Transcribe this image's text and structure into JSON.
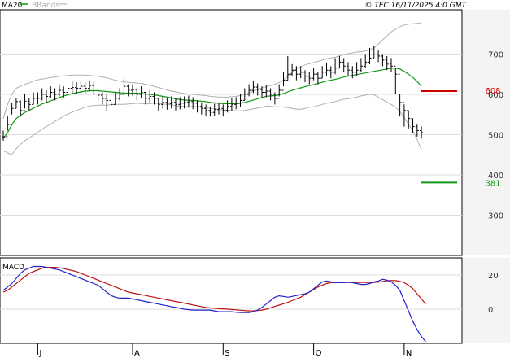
{
  "header": {
    "legend": [
      {
        "label": "MA20",
        "color": "#119a11"
      },
      {
        "label": "BBands",
        "color": "#aaaaaa"
      }
    ],
    "copyright": "© TEC 16/11/2025 4:0 GMT"
  },
  "chart_data": [
    {
      "type": "candlestick-ohlc",
      "title": "",
      "ylim": [
        200,
        810
      ],
      "y_ticks": [
        {
          "value": 700,
          "label": "700"
        },
        {
          "value": 600,
          "label": "600"
        },
        {
          "value": 500,
          "label": "500"
        },
        {
          "value": 400,
          "label": "400"
        },
        {
          "value": 300,
          "label": "300"
        }
      ],
      "x_tick_labels": [
        "J",
        "A",
        "S",
        "O",
        "N"
      ],
      "x_tick_index": [
        8,
        30,
        51,
        72,
        93
      ],
      "close": [
        495,
        525,
        565,
        582,
        560,
        583,
        575,
        590,
        590,
        600,
        595,
        605,
        600,
        610,
        605,
        615,
        617,
        615,
        620,
        615,
        622,
        613,
        598,
        590,
        585,
        575,
        590,
        600,
        620,
        610,
        612,
        600,
        605,
        590,
        595,
        590,
        575,
        580,
        577,
        580,
        575,
        578,
        580,
        582,
        578,
        570,
        565,
        560,
        555,
        562,
        565,
        560,
        570,
        575,
        578,
        585,
        600,
        610,
        618,
        612,
        605,
        608,
        600,
        590,
        610,
        635,
        650,
        660,
        650,
        655,
        645,
        640,
        650,
        640,
        655,
        660,
        655,
        665,
        680,
        670,
        660,
        655,
        660,
        670,
        680,
        690,
        710,
        695,
        685,
        675,
        670,
        650,
        580,
        560,
        540,
        520,
        510,
        505
      ],
      "high": [
        510,
        545,
        580,
        590,
        585,
        600,
        590,
        605,
        605,
        615,
        610,
        620,
        615,
        625,
        620,
        630,
        632,
        630,
        635,
        630,
        635,
        630,
        612,
        605,
        600,
        590,
        605,
        615,
        640,
        625,
        625,
        615,
        620,
        605,
        610,
        605,
        590,
        595,
        592,
        595,
        590,
        593,
        595,
        597,
        593,
        585,
        580,
        575,
        570,
        577,
        580,
        575,
        585,
        590,
        593,
        600,
        615,
        625,
        633,
        627,
        620,
        623,
        615,
        605,
        625,
        655,
        695,
        675,
        670,
        670,
        660,
        655,
        665,
        655,
        670,
        678,
        670,
        690,
        695,
        690,
        680,
        670,
        680,
        690,
        700,
        715,
        720,
        710,
        700,
        695,
        690,
        665,
        600,
        575,
        560,
        540,
        525,
        520
      ],
      "low": [
        485,
        510,
        550,
        565,
        545,
        565,
        560,
        575,
        575,
        585,
        580,
        590,
        585,
        595,
        590,
        600,
        602,
        600,
        605,
        600,
        607,
        598,
        583,
        575,
        560,
        560,
        575,
        585,
        605,
        595,
        597,
        585,
        590,
        575,
        580,
        575,
        560,
        565,
        562,
        565,
        560,
        563,
        565,
        567,
        563,
        555,
        550,
        545,
        545,
        547,
        550,
        545,
        555,
        560,
        563,
        570,
        585,
        595,
        603,
        597,
        590,
        593,
        585,
        575,
        595,
        620,
        635,
        645,
        635,
        640,
        630,
        625,
        635,
        625,
        640,
        645,
        640,
        650,
        665,
        655,
        645,
        640,
        645,
        655,
        665,
        675,
        690,
        680,
        670,
        660,
        655,
        600,
        545,
        520,
        515,
        505,
        495,
        490
      ],
      "ma20": [
        490,
        505,
        525,
        540,
        548,
        555,
        560,
        566,
        571,
        576,
        580,
        584,
        588,
        592,
        596,
        599,
        602,
        604,
        606,
        608,
        609,
        609,
        609,
        608,
        607,
        606,
        605,
        604,
        603,
        603,
        603,
        603,
        602,
        601,
        600,
        599,
        597,
        595,
        593,
        591,
        589,
        587,
        586,
        585,
        585,
        584,
        583,
        582,
        580,
        579,
        578,
        577,
        577,
        577,
        577,
        578,
        580,
        583,
        586,
        589,
        592,
        595,
        596,
        597,
        599,
        602,
        606,
        610,
        613,
        616,
        619,
        622,
        624,
        627,
        630,
        633,
        635,
        637,
        640,
        643,
        645,
        647,
        649,
        651,
        653,
        655,
        657,
        659,
        661,
        663,
        665,
        665,
        663,
        657,
        650,
        642,
        632,
        620
      ],
      "bb_upper": [
        540,
        575,
        600,
        615,
        620,
        625,
        628,
        633,
        636,
        638,
        640,
        642,
        643,
        645,
        646,
        647,
        648,
        648,
        648,
        648,
        647,
        646,
        645,
        643,
        641,
        638,
        635,
        633,
        631,
        630,
        629,
        628,
        627,
        625,
        623,
        620,
        617,
        614,
        611,
        608,
        606,
        604,
        602,
        601,
        600,
        599,
        598,
        597,
        595,
        594,
        593,
        593,
        593,
        594,
        595,
        597,
        600,
        604,
        608,
        612,
        616,
        619,
        622,
        625,
        629,
        636,
        645,
        655,
        663,
        669,
        673,
        676,
        679,
        682,
        685,
        688,
        690,
        692,
        695,
        698,
        701,
        703,
        705,
        706,
        708,
        710,
        715,
        725,
        735,
        745,
        755,
        762,
        768,
        772,
        774,
        775,
        776,
        777
      ],
      "bb_lower": [
        460,
        455,
        450,
        465,
        476,
        485,
        492,
        499,
        506,
        514,
        520,
        526,
        533,
        539,
        546,
        551,
        556,
        560,
        564,
        568,
        571,
        572,
        573,
        573,
        573,
        574,
        575,
        575,
        575,
        576,
        577,
        578,
        577,
        577,
        577,
        578,
        577,
        576,
        575,
        574,
        572,
        570,
        570,
        569,
        570,
        569,
        568,
        567,
        565,
        564,
        563,
        561,
        561,
        560,
        559,
        559,
        560,
        562,
        564,
        566,
        568,
        571,
        570,
        569,
        569,
        568,
        567,
        565,
        563,
        563,
        565,
        568,
        569,
        572,
        575,
        578,
        580,
        582,
        585,
        588,
        589,
        591,
        593,
        596,
        598,
        600,
        599,
        593,
        587,
        581,
        575,
        568,
        558,
        542,
        526,
        509,
        488,
        463
      ],
      "annotations": [
        {
          "label": "608",
          "value": 608,
          "color": "#cc0000"
        },
        {
          "label": "381",
          "value": 381,
          "color": "#119a11"
        }
      ]
    },
    {
      "type": "line",
      "title": "MACD",
      "ylim": [
        -20,
        30
      ],
      "y_ticks": [
        {
          "value": 20,
          "label": "20"
        },
        {
          "value": 0,
          "label": "0"
        }
      ],
      "series": [
        {
          "name": "MACD",
          "color": "#2222cc"
        },
        {
          "name": "",
          "color": "#bb1111"
        }
      ],
      "macd": [
        11,
        13,
        15,
        18,
        21,
        23,
        24,
        25,
        25,
        25,
        24.5,
        24,
        23.5,
        23,
        22,
        21,
        20,
        19,
        18,
        17,
        16,
        15,
        14,
        12,
        10,
        8,
        7,
        6.5,
        6.5,
        6.5,
        6,
        5.5,
        5,
        4.5,
        4,
        3.5,
        3,
        2.5,
        2,
        1.5,
        1,
        0.5,
        0,
        -0.3,
        -0.5,
        -0.5,
        -0.5,
        -0.5,
        -0.5,
        -1,
        -1.5,
        -1.5,
        -1.5,
        -1.5,
        -1.8,
        -2,
        -2,
        -2,
        -1.5,
        -0.5,
        1,
        3,
        5,
        7,
        7.8,
        7.5,
        7,
        7.5,
        8,
        8.5,
        9,
        10,
        12,
        14,
        16,
        16.5,
        16,
        15.5,
        15.5,
        15.5,
        15.8,
        15.5,
        15,
        14.5,
        14.5,
        15,
        16,
        16.5,
        17.5,
        17,
        16,
        14,
        11,
        5,
        -1,
        -7,
        -12,
        -16,
        -19
      ],
      "signal": [
        10,
        11,
        13,
        15,
        17,
        19,
        21,
        22,
        23,
        24,
        24.5,
        24.5,
        24.5,
        24.2,
        23.8,
        23.2,
        22.6,
        22,
        21,
        20,
        19,
        18,
        17,
        16,
        15,
        14,
        13,
        12,
        11,
        10,
        9.5,
        9,
        8.5,
        8,
        7.5,
        7,
        6.5,
        6,
        5.5,
        5,
        4.5,
        4,
        3.5,
        3,
        2.5,
        2,
        1.5,
        1,
        0.7,
        0.5,
        0.3,
        0.2,
        0,
        -0.2,
        -0.4,
        -0.6,
        -0.8,
        -1,
        -1,
        -0.8,
        -0.5,
        0,
        0.8,
        1.6,
        2.4,
        3.2,
        4,
        5,
        6,
        7,
        8.5,
        10,
        11.5,
        13,
        14,
        15,
        15.5,
        15.6,
        15.6,
        15.6,
        15.6,
        15.6,
        15.6,
        15.6,
        15.6,
        15.6,
        15.6,
        15.8,
        16.2,
        16.6,
        16.8,
        16.7,
        16.3,
        15.5,
        14,
        12,
        9,
        6,
        3
      ]
    }
  ]
}
